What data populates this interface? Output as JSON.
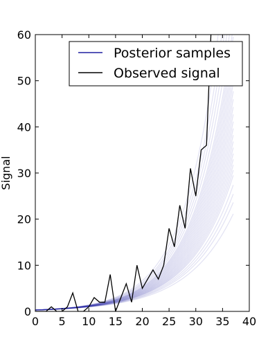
{
  "chart_data": {
    "type": "line",
    "title": "",
    "xlabel": "",
    "ylabel": "Signal",
    "xlim": [
      0,
      40
    ],
    "ylim": [
      0,
      60
    ],
    "xticks": [
      0,
      5,
      10,
      15,
      20,
      25,
      30,
      35,
      40
    ],
    "yticks": [
      0,
      10,
      20,
      30,
      40,
      50,
      60
    ],
    "grid": false,
    "legend_position": "top-right",
    "series": [
      {
        "name": "Posterior samples",
        "color": "#1f1fa0",
        "x_start": 0,
        "x_end": 37,
        "growth_rates": [
          0.115,
          0.118,
          0.12,
          0.122,
          0.124,
          0.125,
          0.126,
          0.127,
          0.128,
          0.129,
          0.13,
          0.131,
          0.132,
          0.133,
          0.134,
          0.135,
          0.136,
          0.137,
          0.138,
          0.139,
          0.14,
          0.141,
          0.142,
          0.143,
          0.144,
          0.146,
          0.148,
          0.15,
          0.152,
          0.155
        ],
        "initial_value": 0.3
      },
      {
        "name": "Observed signal",
        "color": "#000000",
        "x": [
          0,
          1,
          2,
          3,
          4,
          5,
          6,
          7,
          8,
          9,
          10,
          11,
          12,
          13,
          14,
          15,
          16,
          17,
          18,
          19,
          20,
          21,
          22,
          23,
          24,
          25,
          26,
          27,
          28,
          29,
          30,
          31,
          32,
          33
        ],
        "y": [
          0,
          0,
          0,
          1,
          0,
          0,
          1,
          4,
          0,
          0,
          1,
          3,
          2,
          2,
          8,
          0,
          3,
          6,
          2,
          10,
          5,
          7,
          9,
          7,
          10,
          18,
          14,
          23,
          18,
          31,
          25,
          35,
          36,
          65
        ]
      }
    ]
  }
}
